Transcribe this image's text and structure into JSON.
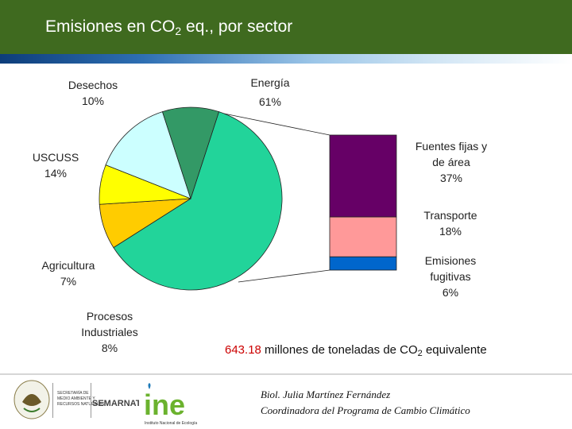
{
  "header": {
    "title_pre": "Emisiones en CO",
    "title_sub": "2",
    "title_post": " eq., por sector"
  },
  "colors": {
    "energia": "#22d49a",
    "desechos": "#339966",
    "uscuss": "#ccffff",
    "agricultura": "#ffff00",
    "procesos": "#ffcc00",
    "fuentes_fijas": "#660066",
    "transporte": "#ff9999",
    "fugitivas": "#0066cc"
  },
  "chart_data": [
    {
      "type": "pie",
      "title": "",
      "slices": [
        {
          "key": "energia",
          "label": "Energía",
          "value": 61,
          "value_label": "61%"
        },
        {
          "key": "procesos",
          "label": "Procesos Industriales",
          "label_lines": [
            "Procesos",
            "Industriales"
          ],
          "value": 8,
          "value_label": "8%"
        },
        {
          "key": "agricultura",
          "label": "Agricultura",
          "value": 7,
          "value_label": "7%"
        },
        {
          "key": "uscuss",
          "label": "USCUSS",
          "value": 14,
          "value_label": "14%"
        },
        {
          "key": "desechos",
          "label": "Desechos",
          "value": 10,
          "value_label": "10%"
        }
      ]
    },
    {
      "type": "bar",
      "stacked": true,
      "title": "",
      "segments": [
        {
          "key": "fuentes_fijas",
          "label": "Fuentes fijas y de área",
          "label_lines": [
            "Fuentes fijas y",
            "de área"
          ],
          "value": 37,
          "value_label": "37%"
        },
        {
          "key": "transporte",
          "label": "Transporte",
          "value": 18,
          "value_label": "18%"
        },
        {
          "key": "fugitivas",
          "label": "Emisiones fugitivas",
          "label_lines": [
            "Emisiones",
            "fugitivas"
          ],
          "value": 6,
          "value_label": "6%"
        }
      ]
    }
  ],
  "total": {
    "value": "643.18",
    "text_pre": " millones de toneladas de CO",
    "text_sub": "2",
    "text_post": " equivalente"
  },
  "signature": {
    "name": "Biol. Julia Martínez Fernández",
    "role": "Coordinadora del Programa de Cambio Climático"
  },
  "logos": {
    "semarnat_text": "SEMARNAT",
    "secretaria_lines": [
      "SECRETARÍA DE",
      "MEDIO AMBIENTE Y",
      "RECURSOS NATURALES"
    ],
    "ine_mark": "ine",
    "ine_caption": "Instituto Nacional de Ecología"
  }
}
